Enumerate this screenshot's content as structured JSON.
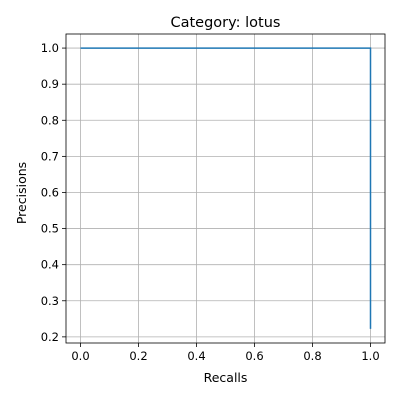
{
  "chart_data": {
    "type": "line",
    "title": "Category: lotus",
    "xlabel": "Recalls",
    "ylabel": "Precisions",
    "xlim": [
      -0.05,
      1.05
    ],
    "ylim": [
      0.183,
      1.039
    ],
    "xticks": [
      0.0,
      0.2,
      0.4,
      0.6,
      0.8,
      1.0
    ],
    "yticks": [
      0.2,
      0.3,
      0.4,
      0.5,
      0.6,
      0.7,
      0.8,
      0.9,
      1.0
    ],
    "xtick_labels": [
      "0.0",
      "0.2",
      "0.4",
      "0.6",
      "0.8",
      "1.0"
    ],
    "ytick_labels": [
      "0.2",
      "0.3",
      "0.4",
      "0.5",
      "0.6",
      "0.7",
      "0.8",
      "0.9",
      "1.0"
    ],
    "grid": true,
    "series": [
      {
        "color": "#1f77b4",
        "x": [
          0.0,
          1.0,
          1.0
        ],
        "y": [
          1.0,
          1.0,
          0.222
        ]
      }
    ]
  }
}
